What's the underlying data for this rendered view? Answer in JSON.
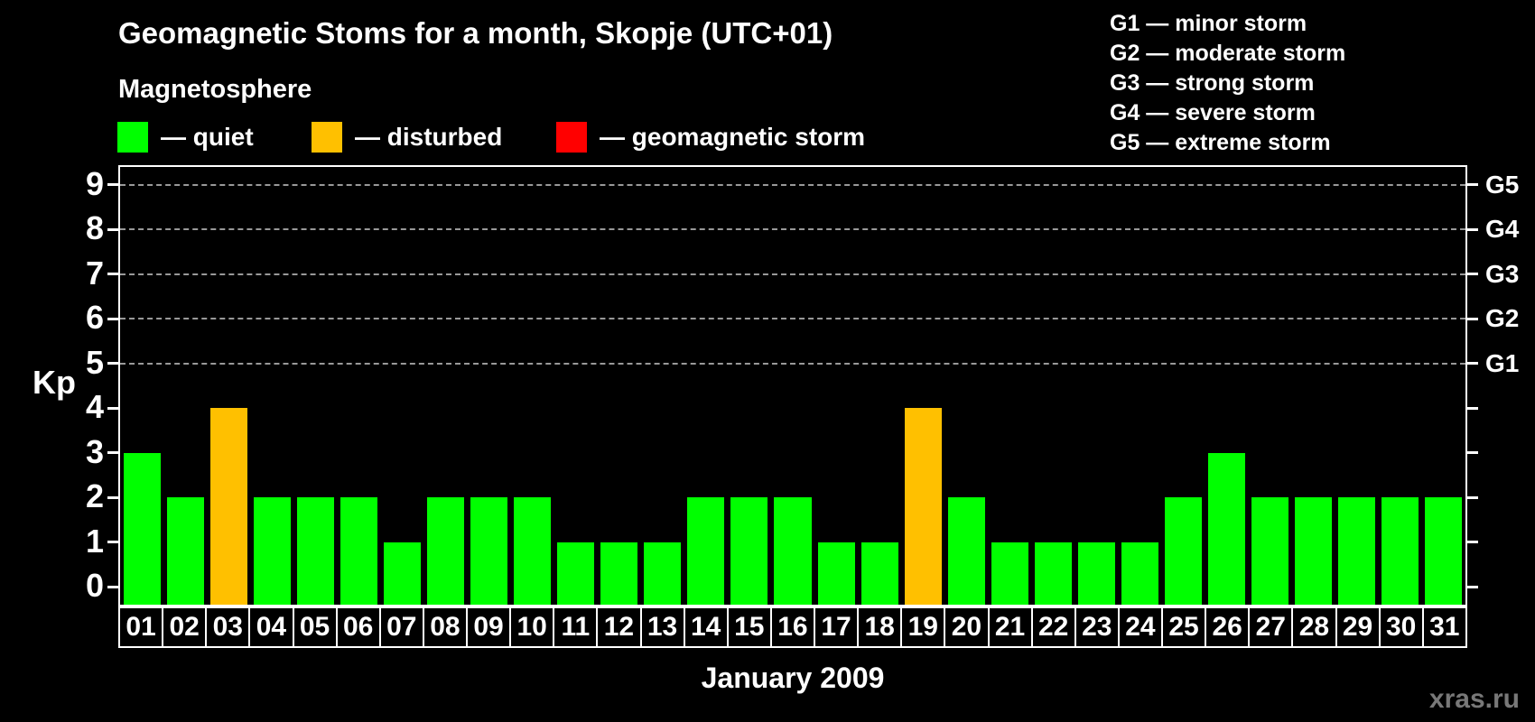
{
  "title": "Geomagnetic Stoms for a month, Skopje (UTC+01)",
  "watermark": "xras.ru",
  "legend": {
    "heading": "Magnetosphere",
    "items": [
      {
        "name": "quiet",
        "label": "— quiet",
        "color": "#00ff00"
      },
      {
        "name": "disturbed",
        "label": "— disturbed",
        "color": "#ffc000"
      },
      {
        "name": "storm",
        "label": "— geomagnetic storm",
        "color": "#ff0000"
      }
    ]
  },
  "g_scale_legend": [
    "G1 — minor storm",
    "G2 — moderate storm",
    "G3 — strong storm",
    "G4 — severe storm",
    "G5 — extreme storm"
  ],
  "chart_data": {
    "type": "bar",
    "title": "Geomagnetic Stoms for a month, Skopje (UTC+01)",
    "xlabel": "January 2009",
    "ylabel": "Kp",
    "ylim": [
      -0.4,
      9.4
    ],
    "yticks": [
      0,
      1,
      2,
      3,
      4,
      5,
      6,
      7,
      8,
      9
    ],
    "gridlines_at": [
      5,
      6,
      7,
      8,
      9
    ],
    "grid_style": "dashed gray horizontal",
    "legend_position": "top",
    "right_axis": [
      {
        "kp": 5,
        "label": "G1"
      },
      {
        "kp": 6,
        "label": "G2"
      },
      {
        "kp": 7,
        "label": "G3"
      },
      {
        "kp": 8,
        "label": "G4"
      },
      {
        "kp": 9,
        "label": "G5"
      }
    ],
    "categories": [
      "01",
      "02",
      "03",
      "04",
      "05",
      "06",
      "07",
      "08",
      "09",
      "10",
      "11",
      "12",
      "13",
      "14",
      "15",
      "16",
      "17",
      "18",
      "19",
      "20",
      "21",
      "22",
      "23",
      "24",
      "25",
      "26",
      "27",
      "28",
      "29",
      "30",
      "31"
    ],
    "values": [
      3,
      2,
      4,
      2,
      2,
      2,
      1,
      2,
      2,
      2,
      1,
      1,
      1,
      2,
      2,
      2,
      1,
      1,
      4,
      2,
      1,
      1,
      1,
      1,
      2,
      3,
      2,
      2,
      2,
      2,
      2
    ],
    "statuses": [
      "quiet",
      "quiet",
      "disturbed",
      "quiet",
      "quiet",
      "quiet",
      "quiet",
      "quiet",
      "quiet",
      "quiet",
      "quiet",
      "quiet",
      "quiet",
      "quiet",
      "quiet",
      "quiet",
      "quiet",
      "quiet",
      "disturbed",
      "quiet",
      "quiet",
      "quiet",
      "quiet",
      "quiet",
      "quiet",
      "quiet",
      "quiet",
      "quiet",
      "quiet",
      "quiet",
      "quiet"
    ],
    "bar_colors": {
      "quiet": "#00ff00",
      "disturbed": "#ffc000",
      "storm": "#ff0000"
    }
  }
}
